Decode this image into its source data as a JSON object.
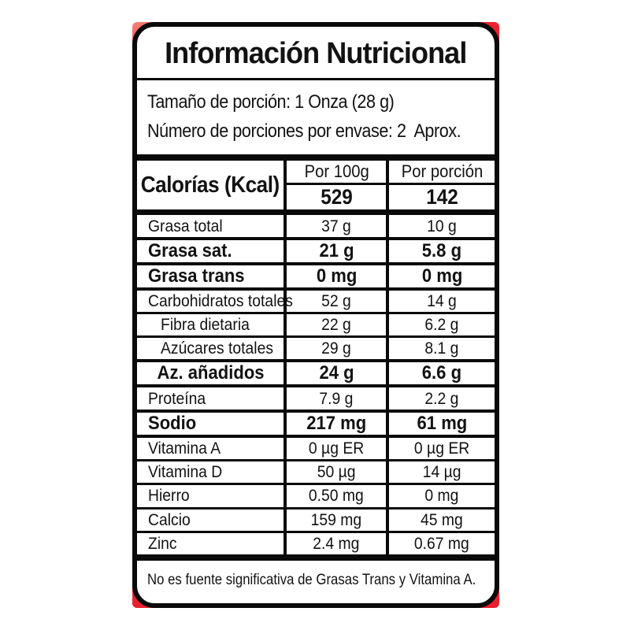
{
  "colors": {
    "backing_red": "#ea1f2e",
    "border_black": "#0a0a0a",
    "label_background": "#ffffff"
  },
  "label": {
    "title": "Información Nutricional",
    "serving": {
      "line1": "Tamaño de porción: 1 Onza (28 g)",
      "line2": "Número de porciones por envase: 2  Aprox."
    },
    "calories": {
      "name": "Calorías (Kcal)",
      "col1_header": "Por 100g",
      "col2_header": "Por porción",
      "per_100g": "529",
      "per_portion": "142"
    },
    "rows": [
      {
        "name": "Grasa total",
        "per_100g": "37 g",
        "per_portion": "10 g",
        "bold": false,
        "indent": false,
        "center": false,
        "section_start": false
      },
      {
        "name": "Grasa sat.",
        "per_100g": "21 g",
        "per_portion": "5.8 g",
        "bold": true,
        "indent": false,
        "center": false,
        "section_start": false
      },
      {
        "name": "Grasa trans",
        "per_100g": "0 mg",
        "per_portion": "0 mg",
        "bold": true,
        "indent": false,
        "center": false,
        "section_start": false
      },
      {
        "name": "Carbohidratos totales",
        "per_100g": "52 g",
        "per_portion": "14 g",
        "bold": false,
        "indent": false,
        "center": false,
        "section_start": false
      },
      {
        "name": "Fibra dietaria",
        "per_100g": "22 g",
        "per_portion": "6.2 g",
        "bold": false,
        "indent": true,
        "center": false,
        "section_start": false
      },
      {
        "name": "Azúcares totales",
        "per_100g": "29 g",
        "per_portion": "8.1 g",
        "bold": false,
        "indent": true,
        "center": false,
        "section_start": false
      },
      {
        "name": "Az. añadidos",
        "per_100g": "24 g",
        "per_portion": "6.6 g",
        "bold": true,
        "indent": false,
        "center": true,
        "section_start": false
      },
      {
        "name": "Proteína",
        "per_100g": "7.9 g",
        "per_portion": "2.2 g",
        "bold": false,
        "indent": false,
        "center": false,
        "section_start": false
      },
      {
        "name": "Sodio",
        "per_100g": "217 mg",
        "per_portion": "61 mg",
        "bold": true,
        "indent": false,
        "center": false,
        "section_start": false
      },
      {
        "name": "Vitamina A",
        "per_100g": "0 µg ER",
        "per_portion": "0 µg ER",
        "bold": false,
        "indent": false,
        "center": false,
        "section_start": true
      },
      {
        "name": "Vitamina D",
        "per_100g": "50 µg",
        "per_portion": "14 µg",
        "bold": false,
        "indent": false,
        "center": false,
        "section_start": false
      },
      {
        "name": "Hierro",
        "per_100g": "0.50 mg",
        "per_portion": "0 mg",
        "bold": false,
        "indent": false,
        "center": false,
        "section_start": false
      },
      {
        "name": "Calcio",
        "per_100g": "159 mg",
        "per_portion": "45 mg",
        "bold": false,
        "indent": false,
        "center": false,
        "section_start": false
      },
      {
        "name": "Zinc",
        "per_100g": "2.4 mg",
        "per_portion": "0.67 mg",
        "bold": false,
        "indent": false,
        "center": false,
        "section_start": false
      }
    ],
    "footnote": "No es fuente significativa de Grasas Trans y Vitamina A."
  }
}
